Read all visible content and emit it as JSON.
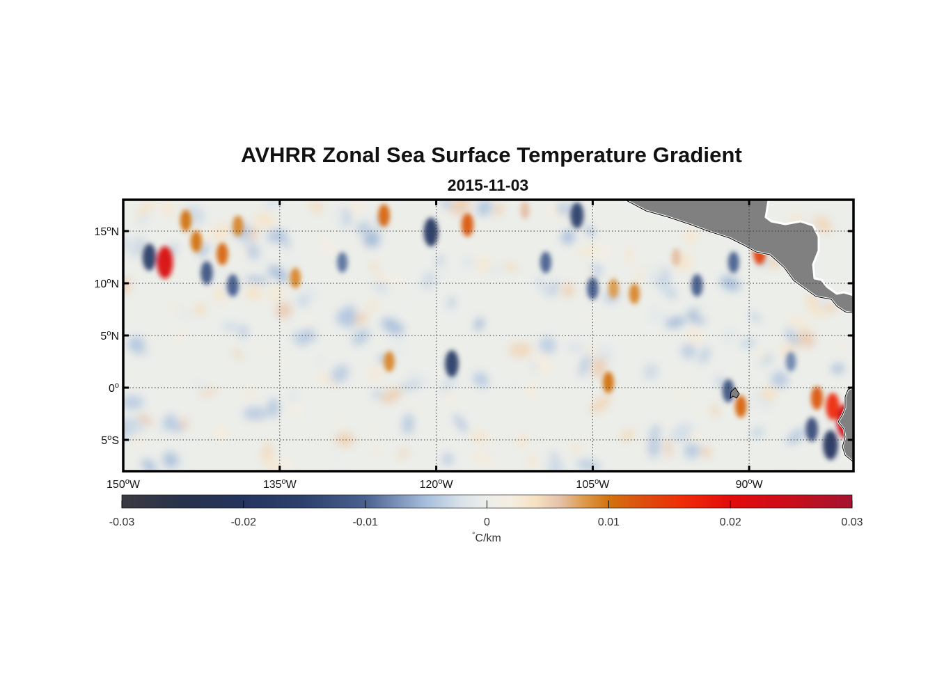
{
  "title": "AVHRR Zonal Sea Surface Temperature Gradient",
  "subtitle": "2015-11-03",
  "map": {
    "lon_range": [
      -150,
      -80
    ],
    "lat_range": [
      -8,
      18
    ],
    "lon_gridlines": [
      -150,
      -135,
      -120,
      -105,
      -90
    ],
    "lat_gridlines": [
      -5,
      0,
      5,
      10,
      15
    ],
    "lon_ticks": [
      {
        "value": -150,
        "deg": "150",
        "dir": "W"
      },
      {
        "value": -135,
        "deg": "135",
        "dir": "W"
      },
      {
        "value": -120,
        "deg": "120",
        "dir": "W"
      },
      {
        "value": -105,
        "deg": "105",
        "dir": "W"
      },
      {
        "value": -90,
        "deg": "90",
        "dir": "W"
      }
    ],
    "lat_ticks": [
      {
        "value": 15,
        "deg": "15",
        "dir": "N"
      },
      {
        "value": 10,
        "deg": "10",
        "dir": "N"
      },
      {
        "value": 5,
        "deg": "5",
        "dir": "N"
      },
      {
        "value": 0,
        "deg": "0",
        "dir": ""
      },
      {
        "value": -5,
        "deg": "5",
        "dir": "S"
      }
    ],
    "land_color": "#808080",
    "features": [
      {
        "name": "orange-anomaly",
        "lon": -146.0,
        "lat": 12.0,
        "value": 0.022
      },
      {
        "name": "blue-anomaly",
        "lon": -147.5,
        "lat": 12.5,
        "value": -0.016
      },
      {
        "name": "orange-anomaly",
        "lon": -140.5,
        "lat": 12.8,
        "value": 0.011
      },
      {
        "name": "orange-anomaly",
        "lon": -144.0,
        "lat": 16.0,
        "value": 0.01
      },
      {
        "name": "blue-anomaly",
        "lon": -142.0,
        "lat": 11.0,
        "value": -0.012
      },
      {
        "name": "blue-anomaly",
        "lon": -139.5,
        "lat": 9.8,
        "value": -0.011
      },
      {
        "name": "orange-anomaly",
        "lon": -139.0,
        "lat": 15.5,
        "value": 0.009
      },
      {
        "name": "orange-anomaly",
        "lon": -143.0,
        "lat": 14.0,
        "value": 0.01
      },
      {
        "name": "orange-anomaly",
        "lon": -125.0,
        "lat": 16.5,
        "value": 0.011
      },
      {
        "name": "blue-anomaly",
        "lon": -120.5,
        "lat": 14.9,
        "value": -0.018
      },
      {
        "name": "orange-anomaly",
        "lon": -117.0,
        "lat": 15.6,
        "value": 0.012
      },
      {
        "name": "blue-anomaly",
        "lon": -118.5,
        "lat": 2.3,
        "value": -0.016
      },
      {
        "name": "orange-anomaly",
        "lon": -124.5,
        "lat": 2.5,
        "value": 0.009
      },
      {
        "name": "blue-anomaly",
        "lon": -106.5,
        "lat": 16.5,
        "value": -0.015
      },
      {
        "name": "blue-anomaly",
        "lon": -109.5,
        "lat": 12.0,
        "value": -0.01
      },
      {
        "name": "blue-anomaly",
        "lon": -105.0,
        "lat": 9.5,
        "value": -0.011
      },
      {
        "name": "orange-anomaly",
        "lon": -103.0,
        "lat": 9.5,
        "value": 0.008
      },
      {
        "name": "orange-anomaly",
        "lon": -101.0,
        "lat": 9.0,
        "value": 0.009
      },
      {
        "name": "orange-anomaly",
        "lon": -103.5,
        "lat": 0.5,
        "value": 0.01
      },
      {
        "name": "orange-anomaly",
        "lon": -89.0,
        "lat": 13.0,
        "value": 0.014
      },
      {
        "name": "orange-anomaly",
        "lon": -82.0,
        "lat": -1.8,
        "value": 0.016
      },
      {
        "name": "orange-anomaly",
        "lon": -83.5,
        "lat": -1.0,
        "value": 0.012
      },
      {
        "name": "orange-anomaly",
        "lon": -80.8,
        "lat": -3.2,
        "value": 0.024
      },
      {
        "name": "blue-anomaly",
        "lon": -82.2,
        "lat": -5.5,
        "value": -0.019
      },
      {
        "name": "blue-anomaly",
        "lon": -84.0,
        "lat": -4.0,
        "value": -0.013
      },
      {
        "name": "orange-anomaly",
        "lon": -90.8,
        "lat": -1.8,
        "value": 0.011
      },
      {
        "name": "blue-anomaly",
        "lon": -92.0,
        "lat": -0.3,
        "value": -0.012
      },
      {
        "name": "blue-anomaly",
        "lon": -95.0,
        "lat": 9.8,
        "value": -0.011
      },
      {
        "name": "blue-anomaly",
        "lon": -91.5,
        "lat": 12.0,
        "value": -0.01
      },
      {
        "name": "orange-anomaly",
        "lon": -133.5,
        "lat": 10.5,
        "value": 0.009
      },
      {
        "name": "blue-anomaly",
        "lon": -129.0,
        "lat": 12.0,
        "value": -0.009
      },
      {
        "name": "orange-anomaly",
        "lon": -111.5,
        "lat": 17.0,
        "value": 0.006
      },
      {
        "name": "orange-anomaly",
        "lon": -97.0,
        "lat": 12.5,
        "value": 0.006
      },
      {
        "name": "blue-anomaly",
        "lon": -86.0,
        "lat": 2.5,
        "value": -0.008
      }
    ]
  },
  "colorbar": {
    "min": -0.03,
    "max": 0.03,
    "ticks": [
      {
        "value": -0.03,
        "label": "-0.03"
      },
      {
        "value": -0.02,
        "label": "-0.02"
      },
      {
        "value": -0.01,
        "label": "-0.01"
      },
      {
        "value": 0,
        "label": "0"
      },
      {
        "value": 0.01,
        "label": "0.01"
      },
      {
        "value": 0.02,
        "label": "0.02"
      },
      {
        "value": 0.03,
        "label": "0.03"
      }
    ],
    "units_symbol": "°",
    "units_text": "C/km",
    "stops": [
      {
        "value": -0.03,
        "color": "#3a3a40"
      },
      {
        "value": -0.025,
        "color": "#28324c"
      },
      {
        "value": -0.02,
        "color": "#24345e"
      },
      {
        "value": -0.015,
        "color": "#2d416c"
      },
      {
        "value": -0.01,
        "color": "#4a6190"
      },
      {
        "value": -0.005,
        "color": "#a7bedc"
      },
      {
        "value": -0.002,
        "color": "#dbe4ea"
      },
      {
        "value": 0,
        "color": "#eceeea"
      },
      {
        "value": 0.002,
        "color": "#f5eee2"
      },
      {
        "value": 0.004,
        "color": "#f6e1c2"
      },
      {
        "value": 0.006,
        "color": "#e5c1a8"
      },
      {
        "value": 0.008,
        "color": "#dd9a4a"
      },
      {
        "value": 0.01,
        "color": "#d2730f"
      },
      {
        "value": 0.013,
        "color": "#de4c0c"
      },
      {
        "value": 0.016,
        "color": "#ee2d08"
      },
      {
        "value": 0.02,
        "color": "#e20b0b"
      },
      {
        "value": 0.025,
        "color": "#c90d1b"
      },
      {
        "value": 0.03,
        "color": "#a31330"
      }
    ]
  }
}
